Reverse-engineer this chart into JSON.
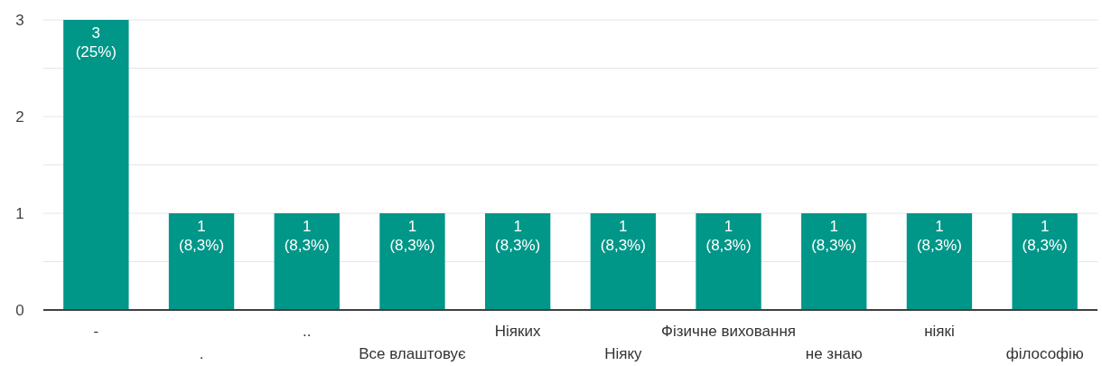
{
  "chart_data": {
    "type": "bar",
    "categories": [
      "-",
      ".",
      "..",
      "Все влаштовує",
      "Ніяких",
      "Ніяку",
      "Фізичне виховання",
      "не знаю",
      "ніякі",
      "філософію"
    ],
    "values": [
      3,
      1,
      1,
      1,
      1,
      1,
      1,
      1,
      1,
      1
    ],
    "value_labels": [
      "3\n(25%)",
      "1\n(8,3%)",
      "1\n(8,3%)",
      "1\n(8,3%)",
      "1\n(8,3%)",
      "1\n(8,3%)",
      "1\n(8,3%)",
      "1\n(8,3%)",
      "1\n(8,3%)",
      "1\n(8,3%)"
    ],
    "color": "#009688",
    "ylim": [
      0,
      3
    ],
    "yticks": [
      0,
      {
        "value": 0.5,
        "label": null
      },
      1,
      {
        "value": 1.5,
        "label": null
      },
      2,
      {
        "value": 2.5,
        "label": null
      },
      3
    ],
    "grid": "y"
  }
}
